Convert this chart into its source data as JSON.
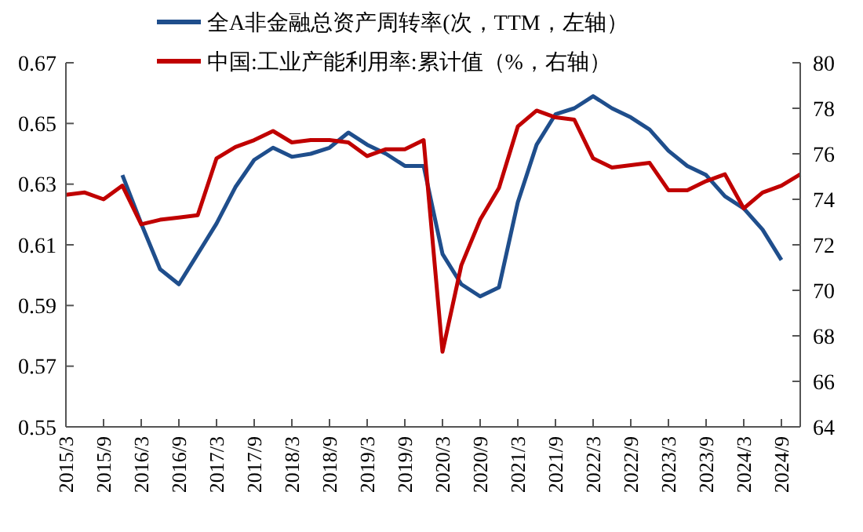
{
  "chart_data": {
    "type": "line",
    "categories": [
      "2015/3",
      null,
      "2015/9",
      null,
      "2016/3",
      null,
      "2016/9",
      null,
      "2017/3",
      null,
      "2017/9",
      null,
      "2018/3",
      null,
      "2018/9",
      null,
      "2019/3",
      null,
      "2019/9",
      null,
      "2020/3",
      null,
      "2020/9",
      null,
      "2021/3",
      null,
      "2021/9",
      null,
      "2022/3",
      null,
      "2022/9",
      null,
      "2023/3",
      null,
      "2023/9",
      null,
      "2024/3",
      null,
      "2024/9",
      null
    ],
    "series": [
      {
        "name": "全A非金融总资产周转率(次，TTM，左轴）",
        "color": "#1f4e8c",
        "values": [
          null,
          null,
          null,
          0.633,
          0.617,
          0.602,
          0.597,
          0.607,
          0.617,
          0.629,
          0.638,
          0.642,
          0.639,
          0.64,
          0.642,
          0.647,
          0.643,
          0.64,
          0.636,
          0.636,
          0.607,
          0.597,
          0.593,
          0.596,
          0.624,
          0.643,
          0.653,
          0.655,
          0.659,
          0.655,
          0.652,
          0.648,
          0.641,
          0.636,
          0.633,
          0.626,
          0.622,
          0.615,
          0.605,
          null
        ]
      },
      {
        "name": "中国:工业产能利用率:累计值（%，右轴）",
        "color": "#c00000",
        "axis": "y2",
        "values": [
          74.2,
          74.3,
          74.0,
          74.6,
          72.9,
          73.1,
          73.2,
          73.3,
          75.8,
          76.3,
          76.6,
          77.0,
          76.5,
          76.6,
          76.6,
          76.5,
          75.9,
          76.2,
          76.2,
          76.6,
          67.3,
          71.1,
          73.1,
          74.5,
          77.2,
          77.9,
          77.6,
          77.5,
          75.8,
          75.4,
          75.5,
          75.6,
          74.4,
          74.4,
          74.8,
          75.1,
          73.6,
          74.3,
          74.6,
          75.1
        ]
      }
    ],
    "ylim": [
      0.55,
      0.67
    ],
    "yticks": [
      0.55,
      0.57,
      0.59,
      0.61,
      0.63,
      0.65,
      0.67
    ],
    "y2lim": [
      64,
      80
    ],
    "y2ticks": [
      64,
      66,
      68,
      70,
      72,
      74,
      76,
      78,
      80
    ],
    "grid": false,
    "legend": "top",
    "marker": "none",
    "line_style": "solid"
  }
}
